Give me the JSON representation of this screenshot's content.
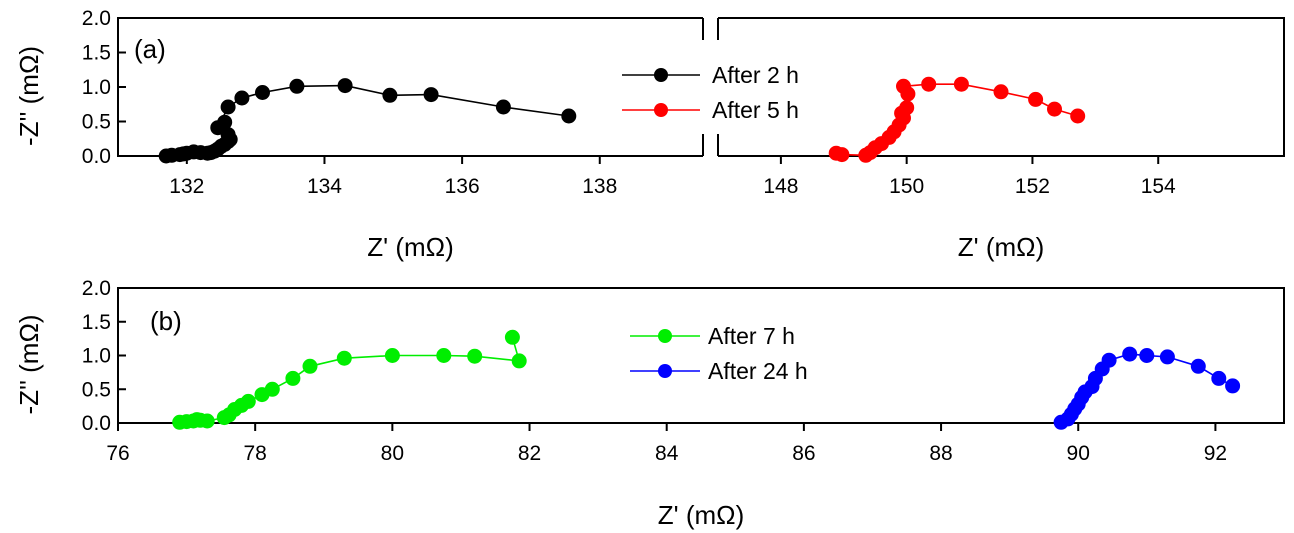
{
  "chart_data": [
    {
      "type": "scatter",
      "panel_label": "(a)",
      "xlabel": "Z' (mΩ)",
      "ylabel": "-Z'' (mΩ)",
      "ylim": [
        0,
        2
      ],
      "yticks": [
        "0.0",
        "0.5",
        "1.0",
        "1.5",
        "2.0"
      ],
      "axis_break": true,
      "grid": false,
      "legend_position": "top-center",
      "segments": [
        {
          "xlim": [
            131,
            139.5
          ],
          "xticks": [
            132,
            134,
            136,
            138
          ]
        },
        {
          "xlim": [
            147,
            156
          ],
          "xticks": [
            148,
            150,
            152,
            154
          ]
        }
      ],
      "series": [
        {
          "name": "After 2 h",
          "color": "#000000",
          "x": [
            131.7,
            131.78,
            131.9,
            131.95,
            132.0,
            132.1,
            132.2,
            132.3,
            132.35,
            132.4,
            132.45,
            132.5,
            132.55,
            132.6,
            132.63,
            132.6,
            132.55,
            132.45,
            132.6,
            132.8,
            133.1,
            133.6,
            134.3,
            134.95,
            135.55,
            136.6,
            137.55
          ],
          "y": [
            0.0,
            0.01,
            0.02,
            0.03,
            0.04,
            0.06,
            0.05,
            0.04,
            0.05,
            0.07,
            0.1,
            0.14,
            0.17,
            0.21,
            0.24,
            0.31,
            0.49,
            0.41,
            0.71,
            0.84,
            0.92,
            1.01,
            1.02,
            0.88,
            0.89,
            0.71,
            0.58
          ]
        },
        {
          "name": "After 5 h",
          "color": "#ff0000",
          "x": [
            148.88,
            148.97,
            149.35,
            149.42,
            149.5,
            149.6,
            149.72,
            149.8,
            149.88,
            149.95,
            149.92,
            150.0,
            150.02,
            149.95,
            150.35,
            150.87,
            151.5,
            152.05,
            152.35,
            152.72
          ],
          "y": [
            0.04,
            0.02,
            0.01,
            0.05,
            0.12,
            0.18,
            0.27,
            0.35,
            0.45,
            0.55,
            0.62,
            0.7,
            0.9,
            1.01,
            1.04,
            1.04,
            0.93,
            0.82,
            0.68,
            0.58
          ]
        }
      ]
    },
    {
      "type": "scatter",
      "panel_label": "(b)",
      "xlabel": "Z' (mΩ)",
      "ylabel": "-Z'' (mΩ)",
      "ylim": [
        0,
        2
      ],
      "xlim": [
        76,
        93
      ],
      "xticks": [
        76,
        78,
        80,
        82,
        84,
        86,
        88,
        90,
        92
      ],
      "yticks": [
        "0.0",
        "0.5",
        "1.0",
        "1.5",
        "2.0"
      ],
      "grid": false,
      "legend_position": "top-center",
      "series": [
        {
          "name": "After 7 h",
          "color": "#00ee00",
          "x": [
            76.9,
            77.0,
            77.1,
            77.15,
            77.2,
            77.3,
            77.55,
            77.62,
            77.7,
            77.8,
            77.9,
            78.1,
            78.25,
            78.55,
            78.8,
            79.3,
            80.0,
            80.75,
            81.2,
            81.85,
            81.75
          ],
          "y": [
            0.01,
            0.02,
            0.03,
            0.05,
            0.04,
            0.03,
            0.08,
            0.12,
            0.2,
            0.26,
            0.32,
            0.42,
            0.5,
            0.66,
            0.84,
            0.96,
            1.0,
            1.0,
            0.99,
            0.92,
            1.27
          ]
        },
        {
          "name": "After 24 h",
          "color": "#0000ff",
          "x": [
            89.75,
            89.85,
            89.9,
            89.95,
            90.0,
            90.05,
            90.1,
            90.2,
            90.25,
            90.35,
            90.45,
            90.75,
            91.0,
            91.3,
            91.75,
            92.05,
            92.25
          ],
          "y": [
            0.01,
            0.06,
            0.13,
            0.21,
            0.28,
            0.38,
            0.46,
            0.54,
            0.66,
            0.8,
            0.93,
            1.02,
            1.0,
            0.98,
            0.84,
            0.66,
            0.55
          ]
        }
      ]
    }
  ]
}
